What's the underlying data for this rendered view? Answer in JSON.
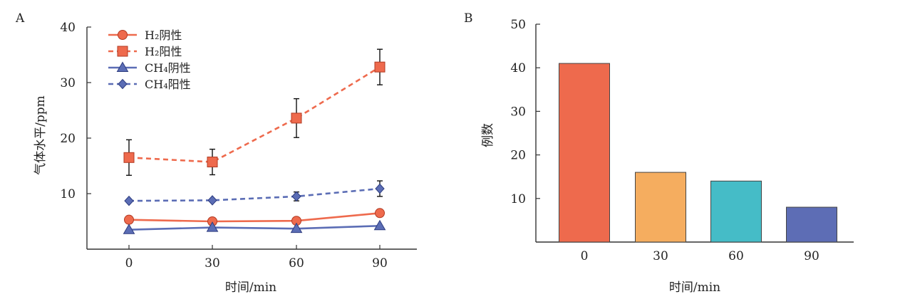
{
  "colors": {
    "red": "#ee6a4d",
    "blue": "#5b6db5",
    "bar_colors": [
      "#ee6a4d",
      "#f5ad5f",
      "#45bcc7",
      "#5d6db5"
    ]
  },
  "chart_data": [
    {
      "panel": "A",
      "type": "line",
      "xlabel": "时间/min",
      "ylabel": "气体水平/ppm",
      "x": [
        0,
        30,
        60,
        90
      ],
      "xticks": [
        "0",
        "30",
        "60",
        "90"
      ],
      "ylim": [
        0,
        40
      ],
      "yticks": [
        "10",
        "20",
        "30",
        "40"
      ],
      "grid": false,
      "legend_position": "top-left",
      "series": [
        {
          "name": "H₂阴性",
          "values": [
            5.3,
            5.0,
            5.1,
            6.5
          ],
          "errors": [
            0,
            0,
            0,
            0
          ],
          "marker": "circle",
          "dash": false,
          "color": "#ee6a4d"
        },
        {
          "name": "H₂阳性",
          "values": [
            16.5,
            15.7,
            23.6,
            32.8
          ],
          "errors": [
            3.2,
            2.3,
            3.5,
            3.2
          ],
          "marker": "square",
          "dash": true,
          "color": "#ee6a4d"
        },
        {
          "name": "CH₄阴性",
          "values": [
            3.5,
            3.9,
            3.7,
            4.2
          ],
          "errors": [
            0,
            0,
            0,
            0
          ],
          "marker": "triangle",
          "dash": false,
          "color": "#5b6db5"
        },
        {
          "name": "CH₄阳性",
          "values": [
            8.7,
            8.8,
            9.5,
            10.9
          ],
          "errors": [
            0,
            0,
            0.8,
            1.4
          ],
          "marker": "diamond",
          "dash": true,
          "color": "#5b6db5"
        }
      ]
    },
    {
      "panel": "B",
      "type": "bar",
      "xlabel": "时间/min",
      "ylabel": "例数",
      "categories": [
        "0",
        "30",
        "60",
        "90"
      ],
      "values": [
        41,
        16,
        14,
        8
      ],
      "ylim": [
        0,
        50
      ],
      "yticks": [
        "10",
        "20",
        "30",
        "40",
        "50"
      ],
      "grid": false
    }
  ]
}
